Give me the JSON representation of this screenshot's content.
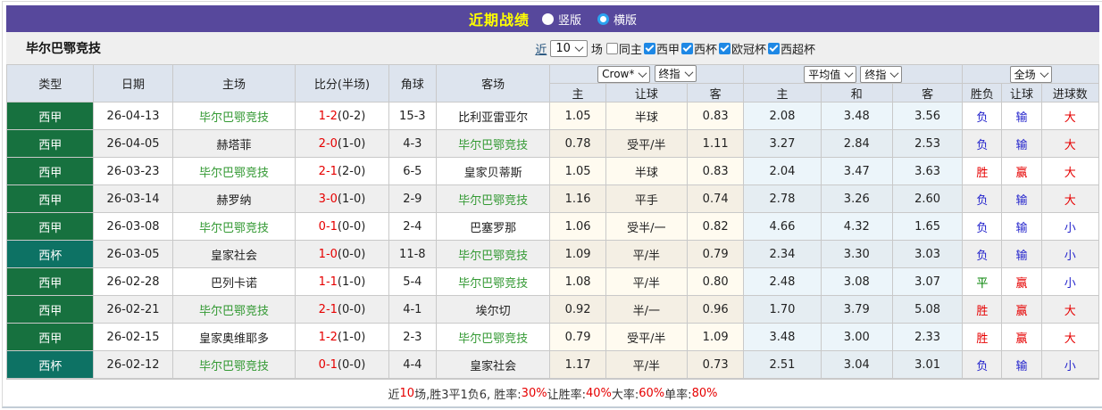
{
  "colors": {
    "topbar_bg": "#57489c",
    "title_text": "#ffff00",
    "league_liga_bg": "#17713f",
    "league_cup_bg": "#0d7264",
    "team_green": "#339933",
    "win_red": "#e60000",
    "lose_blue": "#2323cc",
    "draw_green": "#008000",
    "checkbox_blue": "#1e88e5"
  },
  "topbar": {
    "title": "近期战绩",
    "radio_vertical": "竖版",
    "radio_horizontal": "横版",
    "selected": "横版"
  },
  "filterbar": {
    "team": "毕尔巴鄂竞技",
    "recent_label": "近",
    "recent_value": "10",
    "games_label": "场",
    "checkboxes": [
      {
        "label": "同主",
        "checked": false
      },
      {
        "label": "西甲",
        "checked": true
      },
      {
        "label": "西杯",
        "checked": true
      },
      {
        "label": "欧冠杯",
        "checked": true
      },
      {
        "label": "西超杯",
        "checked": true
      }
    ]
  },
  "table": {
    "headers": {
      "type": "类型",
      "date": "日期",
      "home": "主场",
      "score": "比分(半场)",
      "corner": "角球",
      "away": "客场",
      "asia_bookmaker_select": "Crow*",
      "asia_final_select": "终指",
      "asia_cols": [
        "主",
        "让球",
        "客"
      ],
      "euro_avg_select": "平均值",
      "euro_final_select": "终指",
      "euro_cols": [
        "主",
        "和",
        "客"
      ],
      "fulltime_select": "全场",
      "result_cols": [
        "胜负",
        "让球",
        "进球数"
      ]
    },
    "rows": [
      {
        "league": "西甲",
        "league_type": "liga",
        "date": "26-04-13",
        "home": "毕尔巴鄂竞技",
        "home_team": true,
        "score": "1-2",
        "half": "(0-2)",
        "corner": "15-3",
        "away": "比利亚雷亚尔",
        "away_team": false,
        "asia": [
          "1.05",
          "半球",
          "0.83"
        ],
        "euro": [
          "2.08",
          "3.48",
          "3.56"
        ],
        "wdl": "负",
        "wdl_c": "blue",
        "let": "输",
        "let_c": "blue",
        "goal": "大",
        "goal_c": "red"
      },
      {
        "league": "西甲",
        "league_type": "liga",
        "date": "26-04-05",
        "home": "赫塔菲",
        "home_team": false,
        "score": "2-0",
        "half": "(1-0)",
        "corner": "4-3",
        "away": "毕尔巴鄂竞技",
        "away_team": true,
        "asia": [
          "0.78",
          "受平/半",
          "1.11"
        ],
        "euro": [
          "3.27",
          "2.84",
          "2.53"
        ],
        "wdl": "负",
        "wdl_c": "blue",
        "let": "输",
        "let_c": "blue",
        "goal": "大",
        "goal_c": "red"
      },
      {
        "league": "西甲",
        "league_type": "liga",
        "date": "26-03-23",
        "home": "毕尔巴鄂竞技",
        "home_team": true,
        "score": "2-1",
        "half": "(2-0)",
        "corner": "6-5",
        "away": "皇家贝蒂斯",
        "away_team": false,
        "asia": [
          "1.05",
          "半球",
          "0.83"
        ],
        "euro": [
          "2.04",
          "3.47",
          "3.63"
        ],
        "wdl": "胜",
        "wdl_c": "red",
        "let": "赢",
        "let_c": "red",
        "goal": "大",
        "goal_c": "red"
      },
      {
        "league": "西甲",
        "league_type": "liga",
        "date": "26-03-14",
        "home": "赫罗纳",
        "home_team": false,
        "score": "3-0",
        "half": "(1-0)",
        "corner": "2-9",
        "away": "毕尔巴鄂竞技",
        "away_team": true,
        "asia": [
          "1.16",
          "平手",
          "0.74"
        ],
        "euro": [
          "2.78",
          "3.26",
          "2.60"
        ],
        "wdl": "负",
        "wdl_c": "blue",
        "let": "输",
        "let_c": "blue",
        "goal": "大",
        "goal_c": "red"
      },
      {
        "league": "西甲",
        "league_type": "liga",
        "date": "26-03-08",
        "home": "毕尔巴鄂竞技",
        "home_team": true,
        "score": "0-1",
        "half": "(0-0)",
        "corner": "2-4",
        "away": "巴塞罗那",
        "away_team": false,
        "asia": [
          "1.06",
          "受半/一",
          "0.82"
        ],
        "euro": [
          "4.66",
          "4.32",
          "1.65"
        ],
        "wdl": "负",
        "wdl_c": "blue",
        "let": "输",
        "let_c": "blue",
        "goal": "小",
        "goal_c": "blue"
      },
      {
        "league": "西杯",
        "league_type": "cup",
        "date": "26-03-05",
        "home": "皇家社会",
        "home_team": false,
        "score": "1-0",
        "half": "(0-0)",
        "corner": "11-8",
        "away": "毕尔巴鄂竞技",
        "away_team": true,
        "asia": [
          "1.09",
          "平/半",
          "0.79"
        ],
        "euro": [
          "2.34",
          "3.30",
          "3.03"
        ],
        "wdl": "负",
        "wdl_c": "blue",
        "let": "输",
        "let_c": "blue",
        "goal": "小",
        "goal_c": "blue"
      },
      {
        "league": "西甲",
        "league_type": "liga",
        "date": "26-02-28",
        "home": "巴列卡诺",
        "home_team": false,
        "score": "1-1",
        "half": "(1-0)",
        "corner": "5-4",
        "away": "毕尔巴鄂竞技",
        "away_team": true,
        "asia": [
          "1.08",
          "平/半",
          "0.80"
        ],
        "euro": [
          "2.48",
          "3.08",
          "3.07"
        ],
        "wdl": "平",
        "wdl_c": "green",
        "let": "赢",
        "let_c": "red",
        "goal": "小",
        "goal_c": "blue"
      },
      {
        "league": "西甲",
        "league_type": "liga",
        "date": "26-02-21",
        "home": "毕尔巴鄂竞技",
        "home_team": true,
        "score": "2-1",
        "half": "(0-0)",
        "corner": "4-1",
        "away": "埃尔切",
        "away_team": false,
        "asia": [
          "0.92",
          "半/一",
          "0.96"
        ],
        "euro": [
          "1.70",
          "3.79",
          "5.08"
        ],
        "wdl": "胜",
        "wdl_c": "red",
        "let": "赢",
        "let_c": "red",
        "goal": "大",
        "goal_c": "red"
      },
      {
        "league": "西甲",
        "league_type": "liga",
        "date": "26-02-15",
        "home": "皇家奥维耶多",
        "home_team": false,
        "score": "1-2",
        "half": "(1-0)",
        "corner": "2-3",
        "away": "毕尔巴鄂竞技",
        "away_team": true,
        "asia": [
          "0.79",
          "受平/半",
          "1.09"
        ],
        "euro": [
          "3.48",
          "3.00",
          "2.33"
        ],
        "wdl": "胜",
        "wdl_c": "red",
        "let": "赢",
        "let_c": "red",
        "goal": "大",
        "goal_c": "red"
      },
      {
        "league": "西杯",
        "league_type": "cup",
        "date": "26-02-12",
        "home": "毕尔巴鄂竞技",
        "home_team": true,
        "score": "0-1",
        "half": "(0-0)",
        "corner": "4-4",
        "away": "皇家社会",
        "away_team": false,
        "asia": [
          "1.17",
          "平/半",
          "0.73"
        ],
        "euro": [
          "2.51",
          "3.04",
          "3.01"
        ],
        "wdl": "负",
        "wdl_c": "blue",
        "let": "输",
        "let_c": "blue",
        "goal": "小",
        "goal_c": "blue"
      }
    ]
  },
  "summary": {
    "segments": [
      {
        "t": "近",
        "c": "dark"
      },
      {
        "t": "10",
        "c": "red"
      },
      {
        "t": "场,胜3平1负6, 胜率:",
        "c": "dark"
      },
      {
        "t": "30%",
        "c": "red"
      },
      {
        "t": " 让胜率:",
        "c": "dark"
      },
      {
        "t": "40%",
        "c": "red"
      },
      {
        "t": " 大率:",
        "c": "dark"
      },
      {
        "t": "60%",
        "c": "red"
      },
      {
        "t": " 单率:",
        "c": "dark"
      },
      {
        "t": "80%",
        "c": "red"
      }
    ]
  }
}
